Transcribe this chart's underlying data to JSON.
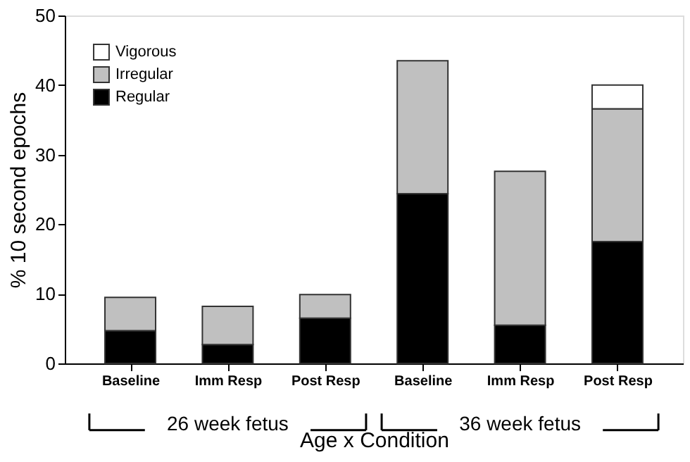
{
  "chart_data": {
    "type": "bar",
    "stacked": true,
    "xlabel": "Age x Condition",
    "ylabel": "% 10 second epochs",
    "categories": [
      "Baseline",
      "Imm Resp",
      "Post Resp",
      "Baseline",
      "Imm Resp",
      "Post Resp"
    ],
    "series": [
      {
        "name": "Regular",
        "color": "#000000",
        "values": [
          4.7,
          2.7,
          6.5,
          24.4,
          5.5,
          17.5
        ]
      },
      {
        "name": "Irregular",
        "color": "#c0c0c0",
        "values": [
          4.8,
          5.5,
          3.4,
          19.1,
          22.1,
          19.1
        ]
      },
      {
        "name": "Vigorous",
        "color": "#ffffff",
        "values": [
          null,
          null,
          null,
          null,
          null,
          3.4
        ]
      }
    ],
    "annotations": [
      "26 week fetus",
      "36 week fetus"
    ],
    "ylim": [
      0,
      50
    ],
    "yticks": [
      0,
      10,
      20,
      30,
      40,
      50
    ],
    "grid": false,
    "legend": "top left"
  }
}
